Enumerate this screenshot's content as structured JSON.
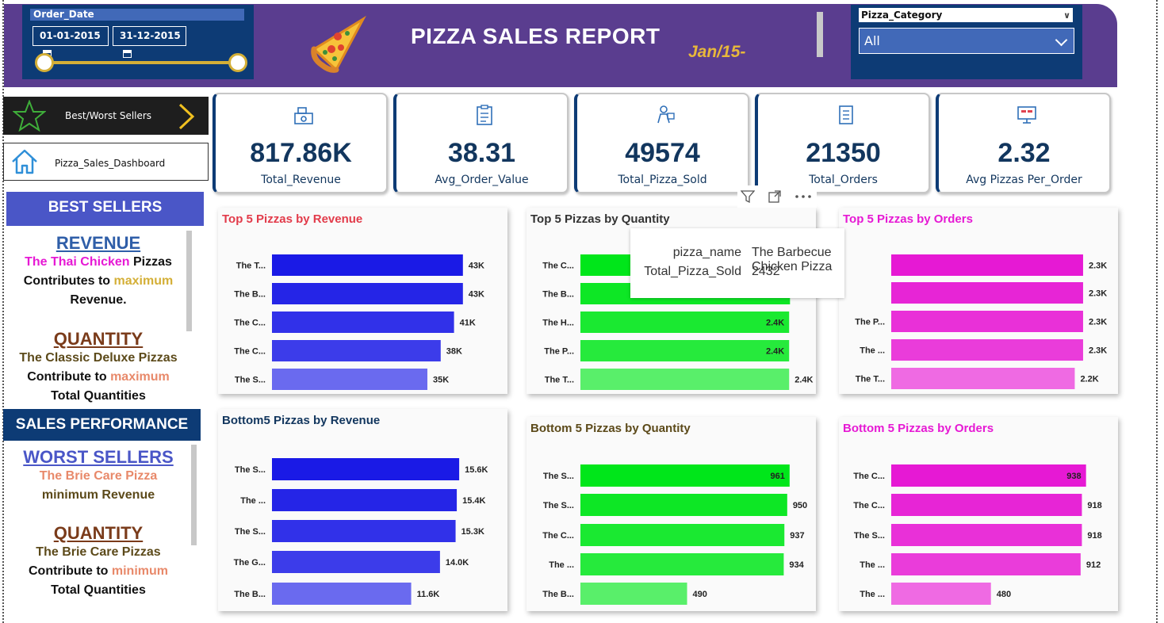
{
  "header": {
    "date_filter": {
      "title": "Order_Date",
      "start": "01-01-2015",
      "end": "31-12-2015"
    },
    "title": "PIZZA SALES REPORT",
    "month": "Jan/15-",
    "category_filter": {
      "title": "Pizza_Category",
      "selected": "All"
    }
  },
  "nav": {
    "best_worst": "Best/Worst Sellers",
    "dashboard": "Pizza_Sales_Dashboard"
  },
  "side": {
    "best_sellers": "BEST SELLERS",
    "revenue_heading": "REVENUE",
    "revenue_pizza": "The Thai Chicken",
    "revenue_word": "Pizzas",
    "contributes_to": "Contributes to",
    "maximum": "maximum",
    "revenue_word2": "Revenue.",
    "quantity_heading": "QUANTITY",
    "quantity_pizza": "The Classic Deluxe Pizzas",
    "contribute_to": "Contribute to",
    "total_quantities": "Total Quantities",
    "sales_performance": "SALES PERFORMANCE",
    "worst_heading": "WORST SELLERS",
    "worst_pizza": "The Brie Care Pizza",
    "minimum_revenue": "minimum Revenue",
    "worst_quantity_heading": "QUANTITY",
    "worst_quantity_pizza": "The Brie Care Pizzas",
    "minimum": "minimum"
  },
  "kpis": [
    {
      "value": "817.86K",
      "label": "Total_Revenue",
      "icon": "cash-register-icon"
    },
    {
      "value": "38.31",
      "label": "Avg_Order_Value",
      "icon": "clipboard-icon"
    },
    {
      "value": "49574",
      "label": "Total_Pizza_Sold",
      "icon": "delivery-icon"
    },
    {
      "value": "21350",
      "label": "Total_Orders",
      "icon": "order-list-icon"
    },
    {
      "value": "2.32",
      "label": "Avg Pizzas Per_Order",
      "icon": "monitor-icon"
    }
  ],
  "colors": {
    "navy": "#0d3b75",
    "purple": "#5a3d8f",
    "blue_bar": "#1a1ae6",
    "green_bar": "#00e61a",
    "magenta_bar": "#e619d4",
    "gold": "#d4af37"
  },
  "tooltip": {
    "key1": "pizza_name",
    "val1": "The Barbecue Chicken Pizza",
    "key2": "Total_Pizza_Sold",
    "val2": "2432"
  },
  "chart_data": [
    {
      "type": "bar",
      "title": "Top 5 Pizzas by Revenue",
      "categories": [
        "The T...",
        "The B...",
        "The C...",
        "The C...",
        "The S..."
      ],
      "values": [
        43,
        43,
        41,
        38,
        35
      ],
      "labels": [
        "43K",
        "43K",
        "41K",
        "38K",
        "35K"
      ],
      "xlim": [
        0,
        50
      ],
      "color": "#1a1ae6",
      "title_color": "#e23b4a"
    },
    {
      "type": "bar",
      "title": "Top 5 Pizzas by Quantity",
      "categories": [
        "The C...",
        "The B...",
        "The H...",
        "The P...",
        "The T..."
      ],
      "values": [
        2.45,
        2.43,
        2.42,
        2.42,
        2.42
      ],
      "labels": [
        "",
        "",
        "2.4K",
        "2.4K",
        "2.4K"
      ],
      "xlim": [
        0,
        2.85
      ],
      "color": "#00e61a",
      "title_color": "#333333"
    },
    {
      "type": "bar",
      "title": "Top 5 Pizzas by Orders",
      "categories": [
        "",
        "",
        "The P...",
        "The ...",
        "The T..."
      ],
      "values": [
        2.3,
        2.3,
        2.3,
        2.3,
        2.2
      ],
      "labels": [
        "2.3K",
        "2.3K",
        "2.3K",
        "2.3K",
        "2.2K"
      ],
      "xlim": [
        0,
        2.5
      ],
      "color": "#e619d4",
      "title_color": "#e619d4"
    },
    {
      "type": "bar",
      "title": "Bottom5 Pizzas by Revenue",
      "categories": [
        "The S...",
        "The ...",
        "The S...",
        "The G...",
        "The B..."
      ],
      "values": [
        15.6,
        15.4,
        15.3,
        14.0,
        11.6
      ],
      "labels": [
        "15.6K",
        "15.4K",
        "15.3K",
        "14.0K",
        "11.6K"
      ],
      "xlim": [
        0,
        18.5
      ],
      "color": "#1a1ae6",
      "title_color": "#12365e"
    },
    {
      "type": "bar",
      "title": "Bottom 5 Pizzas by Quantity",
      "categories": [
        "The S...",
        "The S...",
        "The C...",
        "The ...",
        "The B..."
      ],
      "values": [
        961,
        950,
        937,
        934,
        490
      ],
      "labels": [
        "961",
        "950",
        "937",
        "934",
        "490"
      ],
      "xlim": [
        0,
        1100
      ],
      "color": "#00e61a",
      "title_color": "#5c4a1a"
    },
    {
      "type": "bar",
      "title": "Bottom 5 Pizzas by Orders",
      "categories": [
        "The C...",
        "The C...",
        "The S...",
        "The ...",
        "The ..."
      ],
      "values": [
        938,
        918,
        918,
        912,
        480
      ],
      "labels": [
        "938",
        "918",
        "918",
        "912",
        "480"
      ],
      "xlim": [
        0,
        1050
      ],
      "color": "#e619d4",
      "title_color": "#e619d4"
    }
  ]
}
